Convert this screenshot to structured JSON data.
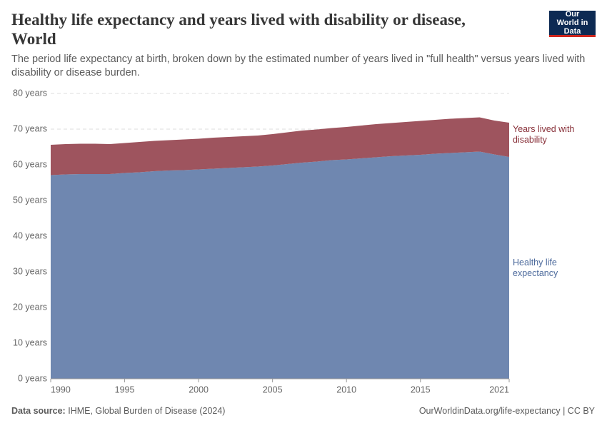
{
  "chart_data": {
    "type": "stacked-area",
    "title": "Healthy life expectancy and years lived with disability or disease, World",
    "subtitle": "The period life expectancy at birth, broken down by the estimated number of years lived in \"full health\" versus years lived with disability or disease burden.",
    "logo": "Our World in Data",
    "source_label": "Data source:",
    "source": "IHME, Global Burden of Disease (2024)",
    "footer_right": "OurWorldinData.org/life-expectancy | CC BY",
    "x": [
      1990,
      1991,
      1992,
      1993,
      1994,
      1995,
      1996,
      1997,
      1998,
      1999,
      2000,
      2001,
      2002,
      2003,
      2004,
      2005,
      2006,
      2007,
      2008,
      2009,
      2010,
      2011,
      2012,
      2013,
      2014,
      2015,
      2016,
      2017,
      2018,
      2019,
      2020,
      2021
    ],
    "xlim": [
      1990,
      2021
    ],
    "xticks": [
      1990,
      1995,
      2000,
      2005,
      2010,
      2015,
      2021
    ],
    "ylim": [
      0,
      80
    ],
    "yticks": [
      {
        "value": 0,
        "label": "0 years"
      },
      {
        "value": 10,
        "label": "10 years"
      },
      {
        "value": 20,
        "label": "20 years"
      },
      {
        "value": 30,
        "label": "30 years"
      },
      {
        "value": 40,
        "label": "40 years"
      },
      {
        "value": 50,
        "label": "50 years"
      },
      {
        "value": 60,
        "label": "60 years"
      },
      {
        "value": 70,
        "label": "70 years"
      },
      {
        "value": 80,
        "label": "80 years"
      }
    ],
    "grid": true,
    "series": [
      {
        "name": "Healthy life expectancy",
        "color": "#6f87b0",
        "label_color": "#4c6a9c",
        "values": [
          57.1,
          57.3,
          57.4,
          57.4,
          57.4,
          57.7,
          57.9,
          58.2,
          58.4,
          58.5,
          58.7,
          58.9,
          59.1,
          59.3,
          59.5,
          59.8,
          60.2,
          60.6,
          60.9,
          61.3,
          61.5,
          61.8,
          62.1,
          62.4,
          62.6,
          62.8,
          63.1,
          63.3,
          63.5,
          63.7,
          62.9,
          62.2
        ]
      },
      {
        "name": "Years lived with disability",
        "color": "#9e545e",
        "label_color": "#883039",
        "values": [
          8.5,
          8.5,
          8.5,
          8.5,
          8.4,
          8.4,
          8.5,
          8.5,
          8.5,
          8.6,
          8.6,
          8.7,
          8.7,
          8.7,
          8.7,
          8.8,
          8.9,
          9.0,
          9.0,
          9.0,
          9.1,
          9.2,
          9.3,
          9.3,
          9.4,
          9.5,
          9.5,
          9.6,
          9.6,
          9.6,
          9.5,
          9.6
        ]
      }
    ]
  }
}
